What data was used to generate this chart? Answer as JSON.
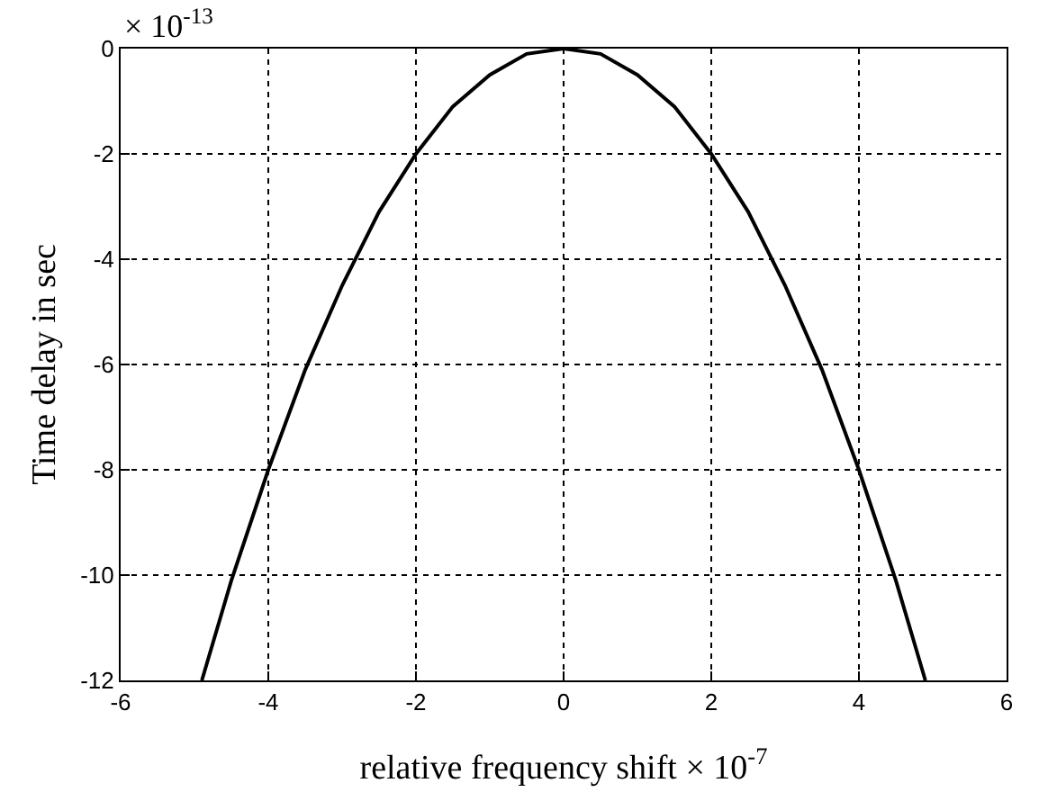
{
  "chart_data": {
    "type": "line",
    "xlabel": "relative frequency shift × 10$^{-7}$",
    "ylabel": "Time delay in sec",
    "annotations": [
      "× 10$^{-13}$"
    ],
    "x": [
      -4.9,
      -4.5,
      -4,
      -3.5,
      -3,
      -2.5,
      -2,
      -1.5,
      -1,
      -0.5,
      0,
      0.5,
      1,
      1.5,
      2,
      2.5,
      3,
      3.5,
      4,
      4.5,
      4.9
    ],
    "series": [
      {
        "color": "#000000",
        "values": [
          -12,
          -10.1,
          -8,
          -6.1,
          -4.5,
          -3.1,
          -2,
          -1.1,
          -0.5,
          -0.1,
          0,
          -0.1,
          -0.5,
          -1.1,
          -2,
          -3.1,
          -4.5,
          -6.1,
          -8,
          -10.1,
          -12
        ]
      }
    ],
    "xlim": [
      -6,
      6
    ],
    "xticks": [
      -6,
      -4,
      -2,
      0,
      2,
      4,
      6
    ],
    "ylim": [
      -12,
      0
    ],
    "yticks": [
      -12,
      -10,
      -8,
      -6,
      -4,
      -2,
      0
    ],
    "grid": true,
    "line_style": "solid",
    "marker": "none"
  }
}
